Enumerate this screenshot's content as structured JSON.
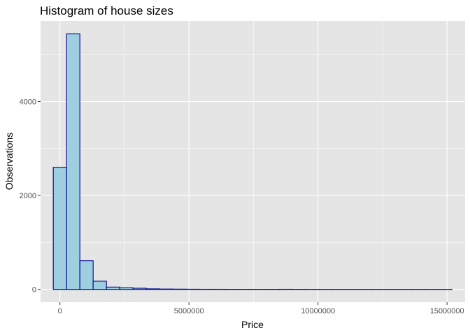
{
  "chart_data": {
    "type": "bar",
    "title": "Histogram of house sizes",
    "xlabel": "Price",
    "ylabel": "Observations",
    "xlim": [
      -750000,
      15700000
    ],
    "ylim": [
      -272,
      5716
    ],
    "x_ticks": [
      0,
      5000000,
      10000000,
      15000000
    ],
    "x_tick_labels": [
      "0",
      "5000000",
      "10000000",
      "15000000"
    ],
    "y_ticks": [
      0,
      2000,
      4000
    ],
    "y_tick_labels": [
      "0",
      "2000",
      "4000"
    ],
    "grid": true,
    "bin_width": 515000,
    "bin_start": -257500,
    "values": [
      2600,
      5440,
      610,
      175,
      50,
      35,
      25,
      12,
      8,
      6,
      4,
      3,
      3,
      2,
      2,
      2,
      2,
      3,
      2,
      1,
      1,
      1,
      1,
      1,
      1,
      1,
      1,
      1,
      1,
      1
    ],
    "colors": {
      "panel_background": "#e5e5e5",
      "grid_major": "#ffffff",
      "bar_fill": "#9ecfe0",
      "bar_outline": "#00008b"
    }
  }
}
